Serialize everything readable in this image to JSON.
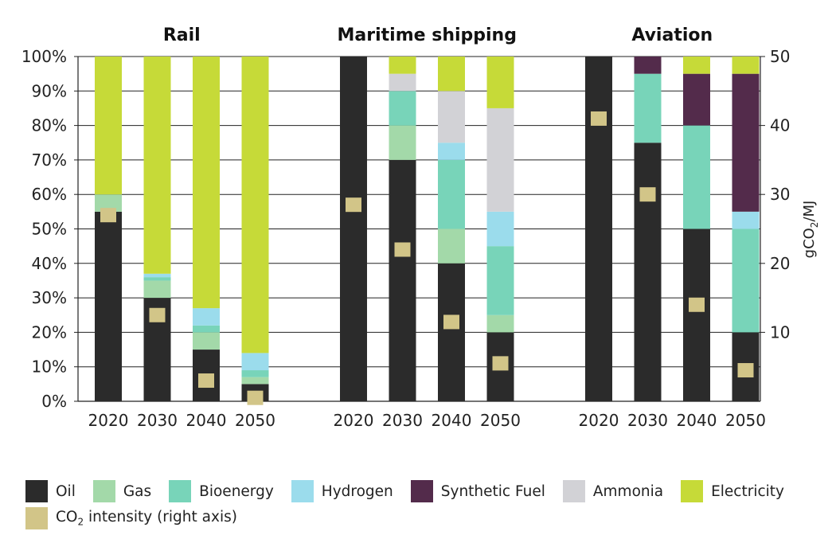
{
  "chart_data": {
    "type": "bar",
    "stacked": true,
    "percent_axis": true,
    "left_axis": {
      "ticks": [
        "0%",
        "10%",
        "20%",
        "30%",
        "40%",
        "50%",
        "60%",
        "70%",
        "80%",
        "90%",
        "100%"
      ],
      "ylim": [
        0,
        100
      ]
    },
    "right_axis": {
      "label": "gCO2/MJ",
      "ticks": [
        "10",
        "20",
        "30",
        "40",
        "50"
      ],
      "ylim": [
        0,
        50
      ]
    },
    "grid": true,
    "legend_position": "bottom",
    "categories": [
      "2020",
      "2030",
      "2040",
      "2050"
    ],
    "panels": [
      {
        "title": "Rail",
        "bars": [
          {
            "year": "2020",
            "Oil": 55,
            "Gas": 5,
            "Bioenergy": 0,
            "Hydrogen": 0,
            "Synthetic Fuel": 0,
            "Ammonia": 0,
            "Electricity": 40,
            "co2": 27
          },
          {
            "year": "2030",
            "Oil": 30,
            "Gas": 5,
            "Bioenergy": 1,
            "Hydrogen": 1,
            "Synthetic Fuel": 0,
            "Ammonia": 0,
            "Electricity": 63,
            "co2": 12.5
          },
          {
            "year": "2040",
            "Oil": 15,
            "Gas": 5,
            "Bioenergy": 2,
            "Hydrogen": 5,
            "Synthetic Fuel": 0,
            "Ammonia": 0,
            "Electricity": 73,
            "co2": 3
          },
          {
            "year": "2050",
            "Oil": 5,
            "Gas": 2,
            "Bioenergy": 2,
            "Hydrogen": 5,
            "Synthetic Fuel": 0,
            "Ammonia": 0,
            "Electricity": 86,
            "co2": 0.5
          }
        ]
      },
      {
        "title": "Maritime shipping",
        "bars": [
          {
            "year": "2020",
            "Oil": 100,
            "Gas": 0,
            "Bioenergy": 0,
            "Hydrogen": 0,
            "Synthetic Fuel": 0,
            "Ammonia": 0,
            "Electricity": 0,
            "co2": 28.5
          },
          {
            "year": "2030",
            "Oil": 70,
            "Gas": 10,
            "Bioenergy": 10,
            "Hydrogen": 0,
            "Synthetic Fuel": 0,
            "Ammonia": 5,
            "Electricity": 5,
            "co2": 22
          },
          {
            "year": "2040",
            "Oil": 40,
            "Gas": 10,
            "Bioenergy": 20,
            "Hydrogen": 5,
            "Synthetic Fuel": 0,
            "Ammonia": 15,
            "Electricity": 10,
            "co2": 11.5
          },
          {
            "year": "2050",
            "Oil": 20,
            "Gas": 5,
            "Bioenergy": 20,
            "Hydrogen": 10,
            "Synthetic Fuel": 0,
            "Ammonia": 30,
            "Electricity": 15,
            "co2": 5.5
          }
        ]
      },
      {
        "title": "Aviation",
        "bars": [
          {
            "year": "2020",
            "Oil": 100,
            "Gas": 0,
            "Bioenergy": 0,
            "Hydrogen": 0,
            "Synthetic Fuel": 0,
            "Ammonia": 0,
            "Electricity": 0,
            "co2": 41
          },
          {
            "year": "2030",
            "Oil": 75,
            "Gas": 0,
            "Bioenergy": 20,
            "Hydrogen": 0,
            "Synthetic Fuel": 5,
            "Ammonia": 0,
            "Electricity": 0,
            "co2": 30
          },
          {
            "year": "2040",
            "Oil": 50,
            "Gas": 0,
            "Bioenergy": 30,
            "Hydrogen": 0,
            "Synthetic Fuel": 15,
            "Ammonia": 0,
            "Electricity": 5,
            "co2": 14
          },
          {
            "year": "2050",
            "Oil": 20,
            "Gas": 0,
            "Bioenergy": 30,
            "Hydrogen": 5,
            "Synthetic Fuel": 40,
            "Ammonia": 0,
            "Electricity": 5,
            "co2": 4.5
          }
        ]
      }
    ],
    "series": [
      {
        "name": "Oil",
        "color": "#2b2b2b"
      },
      {
        "name": "Gas",
        "color": "#a3d9a9"
      },
      {
        "name": "Bioenergy",
        "color": "#78d4b9"
      },
      {
        "name": "Hydrogen",
        "color": "#9bdcec"
      },
      {
        "name": "Synthetic Fuel",
        "color": "#532b4b"
      },
      {
        "name": "Ammonia",
        "color": "#d2d2d6"
      },
      {
        "name": "Electricity",
        "color": "#c6da38"
      }
    ],
    "co2_series": {
      "name_prefix": "CO",
      "name_sub": "2",
      "name_suffix": " intensity (right axis)",
      "color": "#d2c588"
    }
  }
}
